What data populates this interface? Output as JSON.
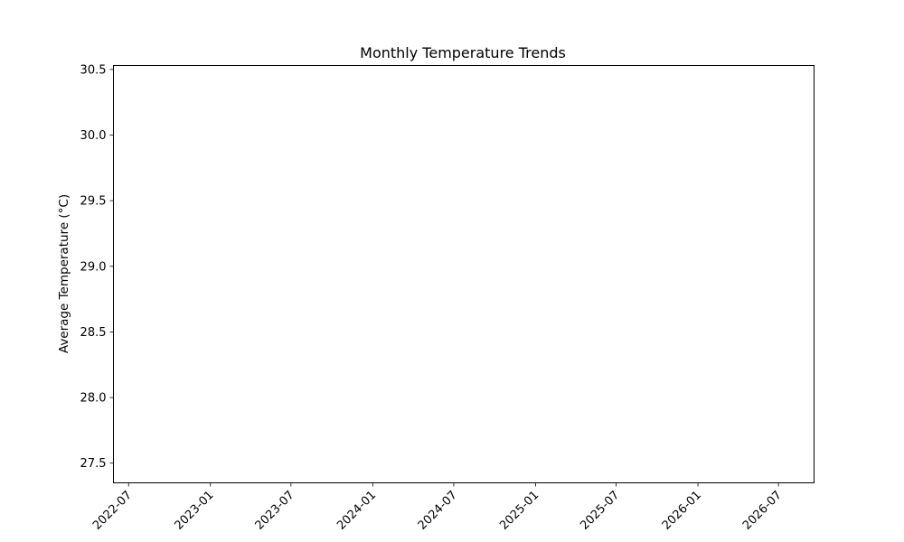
{
  "chart_data": {
    "type": "line",
    "title": "Monthly Temperature Trends",
    "xlabel": "",
    "ylabel": "Average Temperature (°C)",
    "x_ticks": [
      "2022-07",
      "2023-01",
      "2023-07",
      "2024-01",
      "2024-07",
      "2025-01",
      "2025-07",
      "2026-01",
      "2026-07"
    ],
    "y_ticks": [
      "27.5",
      "28.0",
      "28.5",
      "29.0",
      "29.5",
      "30.0",
      "30.5"
    ],
    "xlim": [
      "2022-05-28",
      "2026-09-19"
    ],
    "ylim": [
      27.35,
      30.53
    ],
    "series": [],
    "grid": false,
    "legend": "none"
  }
}
